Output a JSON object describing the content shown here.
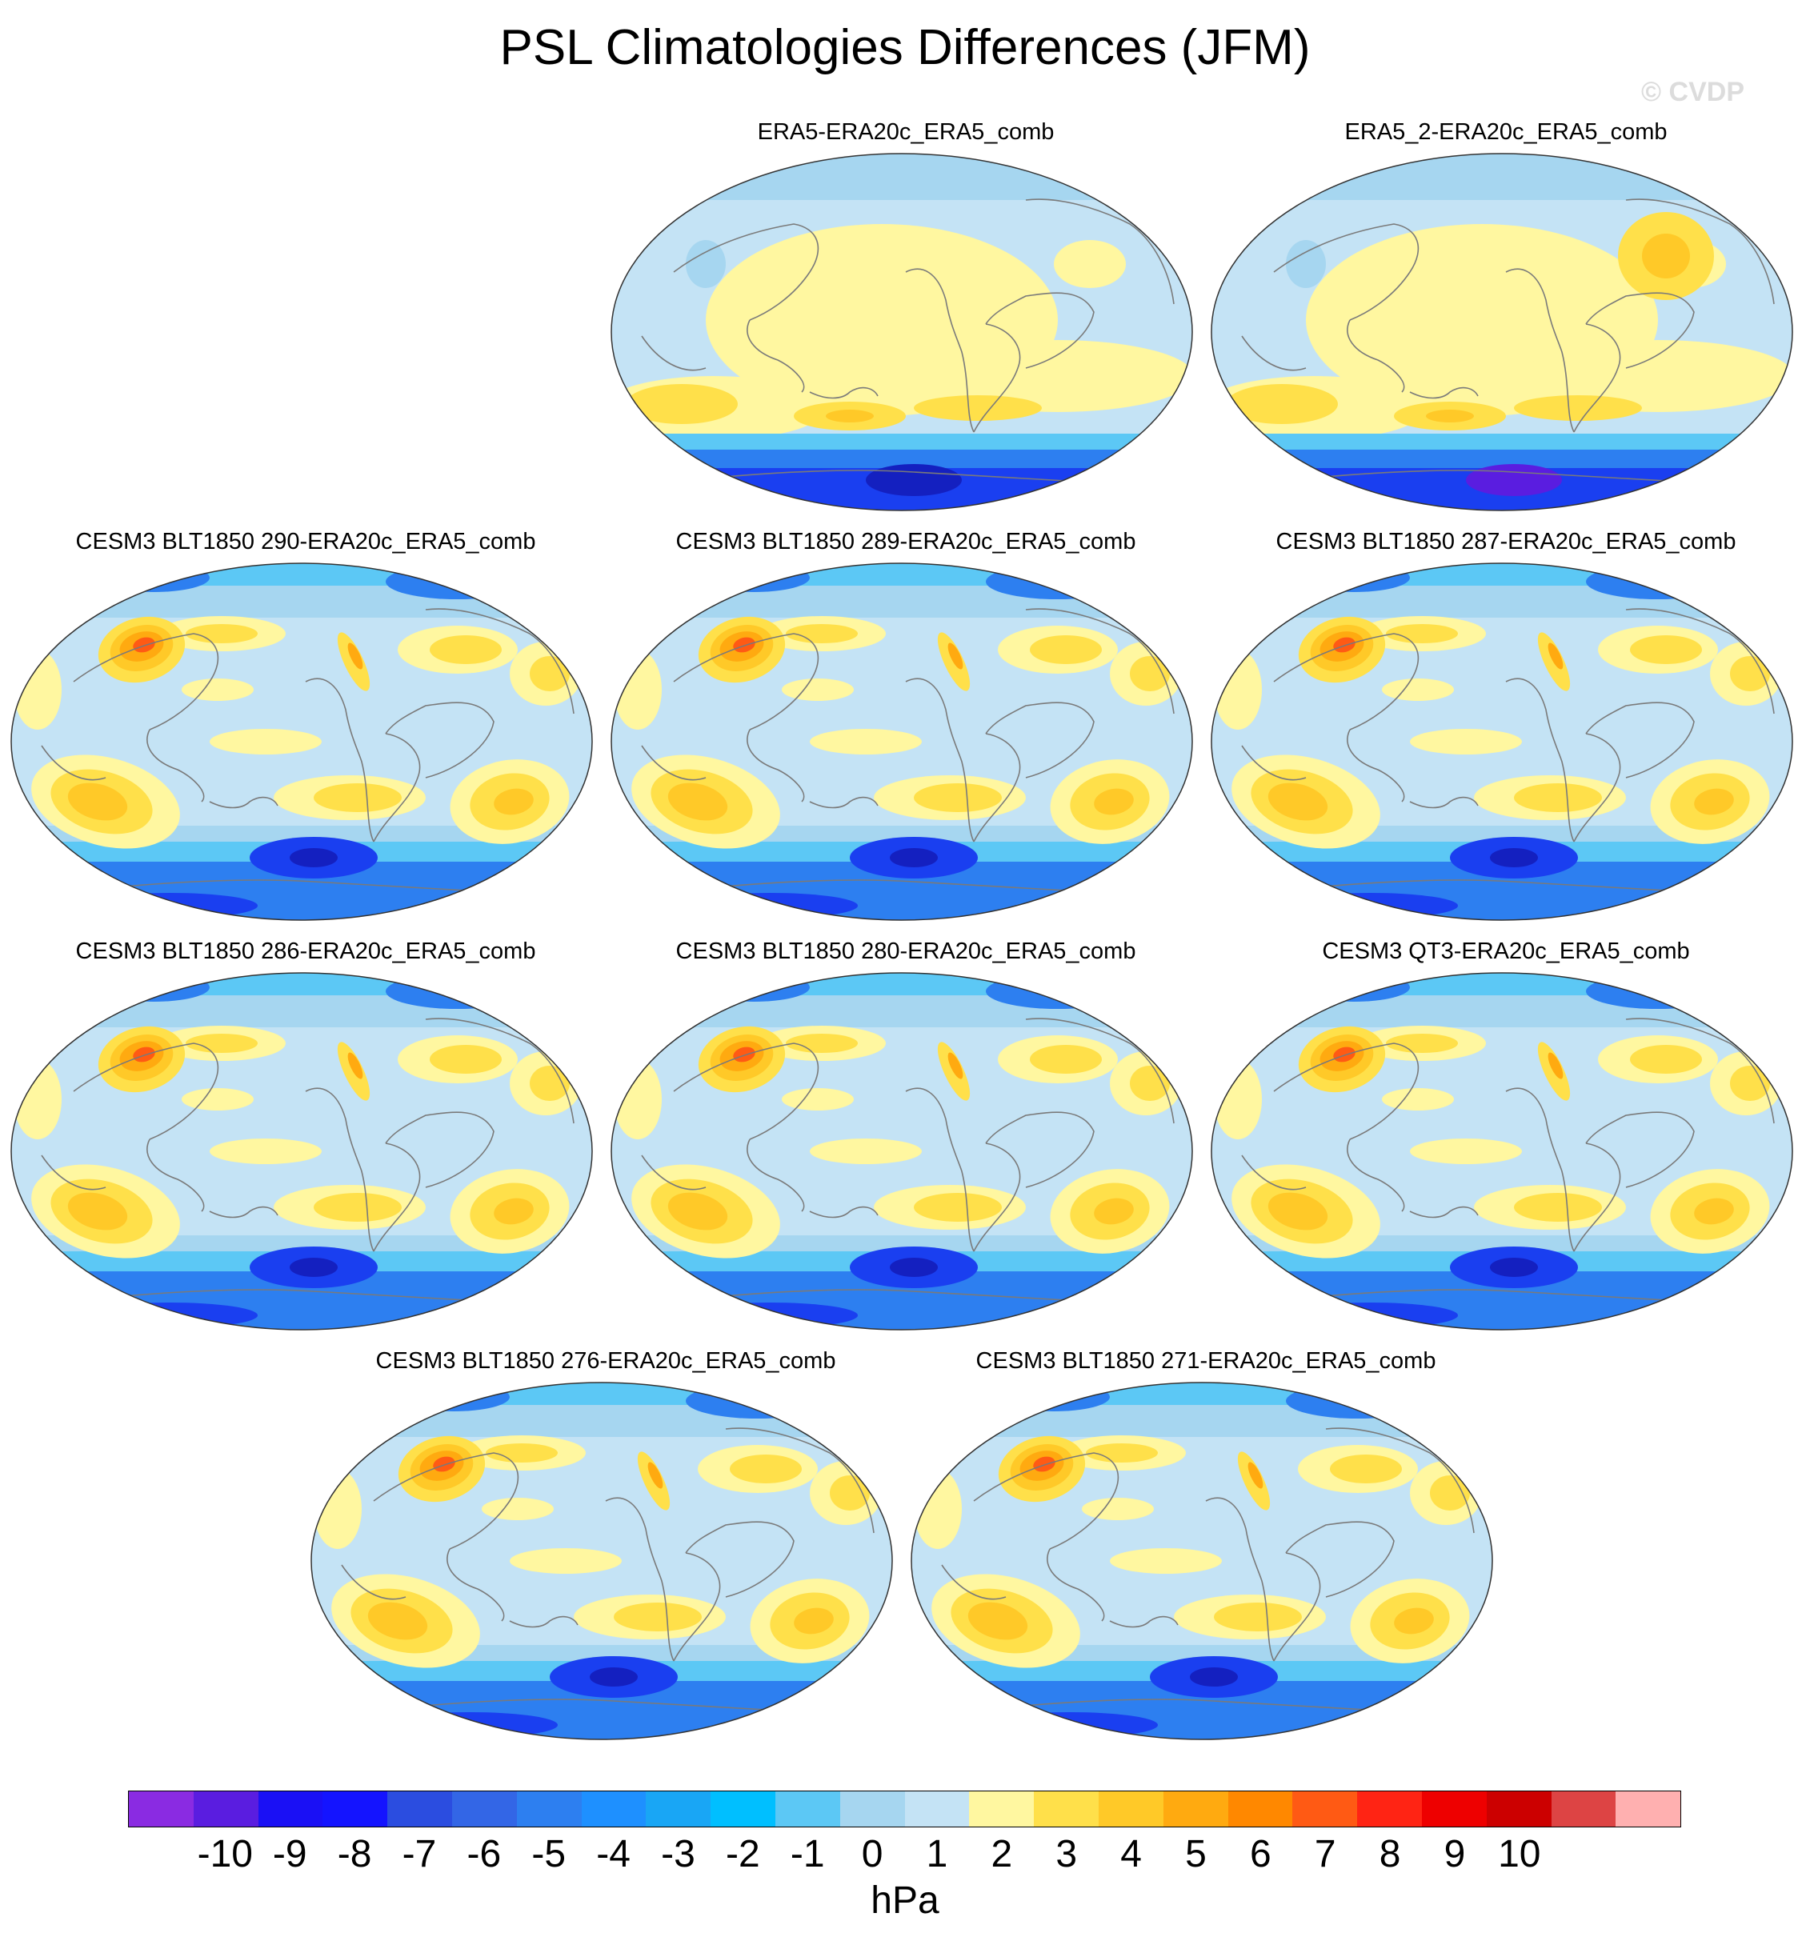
{
  "title": "PSL Climatologies Differences (JFM)",
  "watermark": "© CVDP",
  "panels": [
    {
      "title": "ERA5-ERA20c_ERA5_comb",
      "variant": "obs"
    },
    {
      "title": "ERA5_2-ERA20c_ERA5_comb",
      "variant": "obs"
    },
    {
      "title": "CESM3 BLT1850 290-ERA20c_ERA5_comb",
      "variant": "model"
    },
    {
      "title": "CESM3 BLT1850 289-ERA20c_ERA5_comb",
      "variant": "model"
    },
    {
      "title": "CESM3 BLT1850 287-ERA20c_ERA5_comb",
      "variant": "model"
    },
    {
      "title": "CESM3 BLT1850 286-ERA20c_ERA5_comb",
      "variant": "model"
    },
    {
      "title": "CESM3 BLT1850 280-ERA20c_ERA5_comb",
      "variant": "model"
    },
    {
      "title": "CESM3 QT3-ERA20c_ERA5_comb",
      "variant": "model"
    },
    {
      "title": "CESM3 BLT1850 276-ERA20c_ERA5_comb",
      "variant": "model"
    },
    {
      "title": "CESM3 BLT1850 271-ERA20c_ERA5_comb",
      "variant": "model"
    }
  ],
  "colorbar": {
    "units": "hPa",
    "tick_labels": [
      "-10",
      "-9",
      "-8",
      "-7",
      "-6",
      "-5",
      "-4",
      "-3",
      "-2",
      "-1",
      "0",
      "1",
      "2",
      "3",
      "4",
      "5",
      "6",
      "7",
      "8",
      "9",
      "10"
    ],
    "colors": [
      "#8a2be2",
      "#5a1de0",
      "#1a10f5",
      "#1414ff",
      "#2b4de0",
      "#3366e6",
      "#2d7ff0",
      "#1e90ff",
      "#19a6f5",
      "#00bfff",
      "#5cc8f5",
      "#a6d6f0",
      "#c4e3f5",
      "#fff7a0",
      "#ffe04a",
      "#ffc928",
      "#ffaa10",
      "#ff8800",
      "#ff5a14",
      "#ff2414",
      "#ee0000",
      "#cc0000",
      "#dd4444",
      "#ffb0b0"
    ]
  }
}
